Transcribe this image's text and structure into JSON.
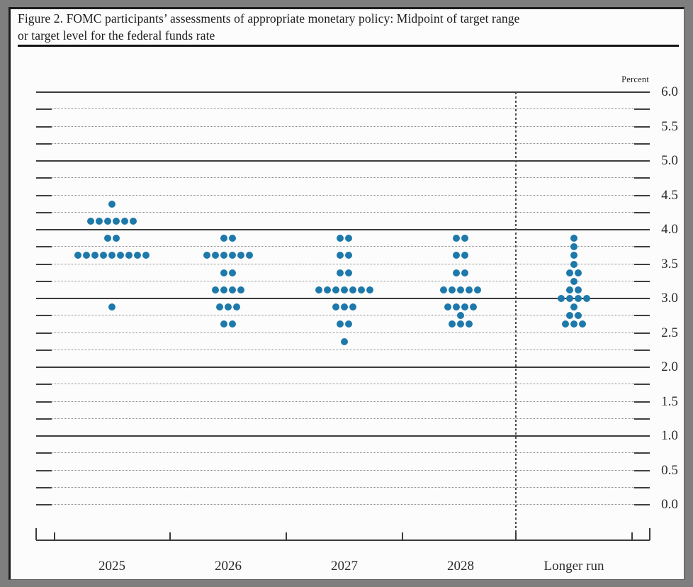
{
  "figure": {
    "title_line1": "Figure 2. FOMC participants’ assessments of appropriate monetary policy: Midpoint of target range",
    "title_line2": "or target level for the federal funds rate"
  },
  "chart_data": {
    "type": "scatter",
    "variant": "fomc_dot_plot",
    "title": "Figure 2. FOMC participants’ assessments of appropriate monetary policy: Midpoint of target range or target level for the federal funds rate",
    "unit_label": "Percent",
    "ylabel": "Percent",
    "ylim": [
      0.0,
      6.0
    ],
    "y_tick_labels": [
      "6.0",
      "5.5",
      "5.0",
      "4.5",
      "4.0",
      "3.5",
      "3.0",
      "2.5",
      "2.0",
      "1.5",
      "1.0",
      "0.5",
      "0.0"
    ],
    "y_grid_minor_step": 0.25,
    "grid": {
      "solid_lines_at": [
        6.0,
        5.0,
        4.0,
        3.0,
        2.0,
        1.0
      ],
      "dotted_step": 0.25
    },
    "legend_position": "none",
    "dot_color": "#1e79ab",
    "categories": [
      "2025",
      "2026",
      "2027",
      "2028",
      "Longer run"
    ],
    "separator_before_category": "Longer run",
    "series": [
      {
        "name": "2025",
        "dots": [
          {
            "rate": 4.375,
            "count": 1
          },
          {
            "rate": 4.125,
            "count": 6
          },
          {
            "rate": 3.875,
            "count": 2
          },
          {
            "rate": 3.625,
            "count": 9
          },
          {
            "rate": 2.875,
            "count": 1
          }
        ]
      },
      {
        "name": "2026",
        "dots": [
          {
            "rate": 3.875,
            "count": 2
          },
          {
            "rate": 3.625,
            "count": 6
          },
          {
            "rate": 3.375,
            "count": 2
          },
          {
            "rate": 3.125,
            "count": 4
          },
          {
            "rate": 2.875,
            "count": 3
          },
          {
            "rate": 2.625,
            "count": 2
          }
        ]
      },
      {
        "name": "2027",
        "dots": [
          {
            "rate": 3.875,
            "count": 2
          },
          {
            "rate": 3.625,
            "count": 2
          },
          {
            "rate": 3.375,
            "count": 2
          },
          {
            "rate": 3.125,
            "count": 7
          },
          {
            "rate": 2.875,
            "count": 3
          },
          {
            "rate": 2.625,
            "count": 2
          },
          {
            "rate": 2.375,
            "count": 1
          }
        ]
      },
      {
        "name": "2028",
        "dots": [
          {
            "rate": 3.875,
            "count": 2
          },
          {
            "rate": 3.625,
            "count": 2
          },
          {
            "rate": 3.375,
            "count": 2
          },
          {
            "rate": 3.125,
            "count": 5
          },
          {
            "rate": 2.875,
            "count": 4
          },
          {
            "rate": 2.75,
            "count": 1
          },
          {
            "rate": 2.625,
            "count": 3
          }
        ]
      },
      {
        "name": "Longer run",
        "dots": [
          {
            "rate": 3.875,
            "count": 1
          },
          {
            "rate": 3.75,
            "count": 1
          },
          {
            "rate": 3.625,
            "count": 1
          },
          {
            "rate": 3.5,
            "count": 1
          },
          {
            "rate": 3.375,
            "count": 2
          },
          {
            "rate": 3.25,
            "count": 1
          },
          {
            "rate": 3.125,
            "count": 2
          },
          {
            "rate": 3.0,
            "count": 4
          },
          {
            "rate": 2.875,
            "count": 1
          },
          {
            "rate": 2.75,
            "count": 2
          },
          {
            "rate": 2.625,
            "count": 3
          }
        ]
      }
    ]
  }
}
